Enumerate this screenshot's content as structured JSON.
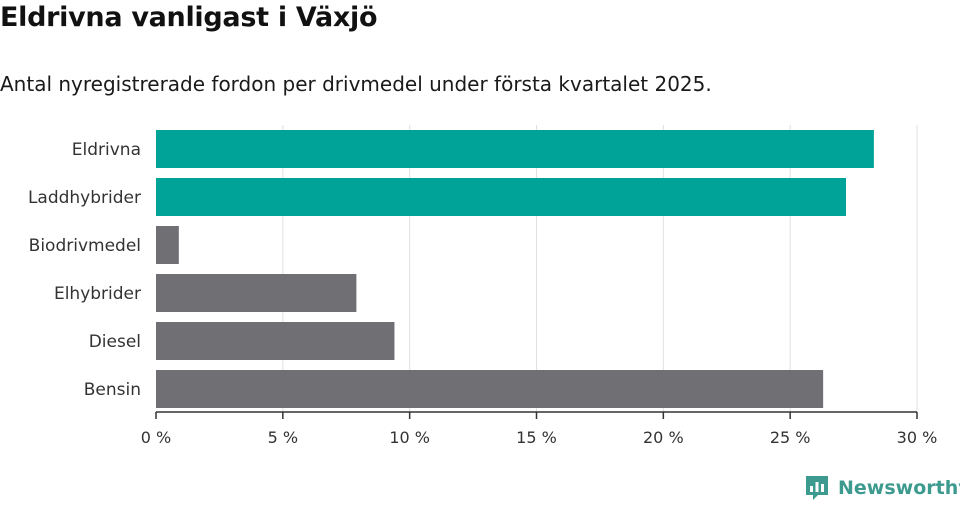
{
  "header": {
    "title": "Eldrivna vanligast i Växjö",
    "subtitle": "Antal nyregistrerade fordon per drivmedel under första kvartalet 2025."
  },
  "brand": {
    "name": "Newsworthy",
    "icon": "newsworthy-logo-icon",
    "color": "#3d9a8f"
  },
  "colors": {
    "highlight": "#00a398",
    "default": "#707074",
    "grid": "#e0e0e0",
    "axis": "#333333"
  },
  "chart_data": {
    "type": "bar",
    "orientation": "horizontal",
    "categories": [
      "Eldrivna",
      "Laddhybrider",
      "Biodrivmedel",
      "Elhybrider",
      "Diesel",
      "Bensin"
    ],
    "values": [
      28.3,
      27.2,
      0.9,
      7.9,
      9.4,
      26.3
    ],
    "highlighted": [
      true,
      true,
      false,
      false,
      false,
      false
    ],
    "xlim": [
      0,
      30
    ],
    "xticks": [
      0,
      5,
      10,
      15,
      20,
      25,
      30
    ],
    "xtick_labels": [
      "0 %",
      "5 %",
      "10 %",
      "15 %",
      "20 %",
      "25 %",
      "30 %"
    ],
    "grid": true,
    "legend": false
  }
}
